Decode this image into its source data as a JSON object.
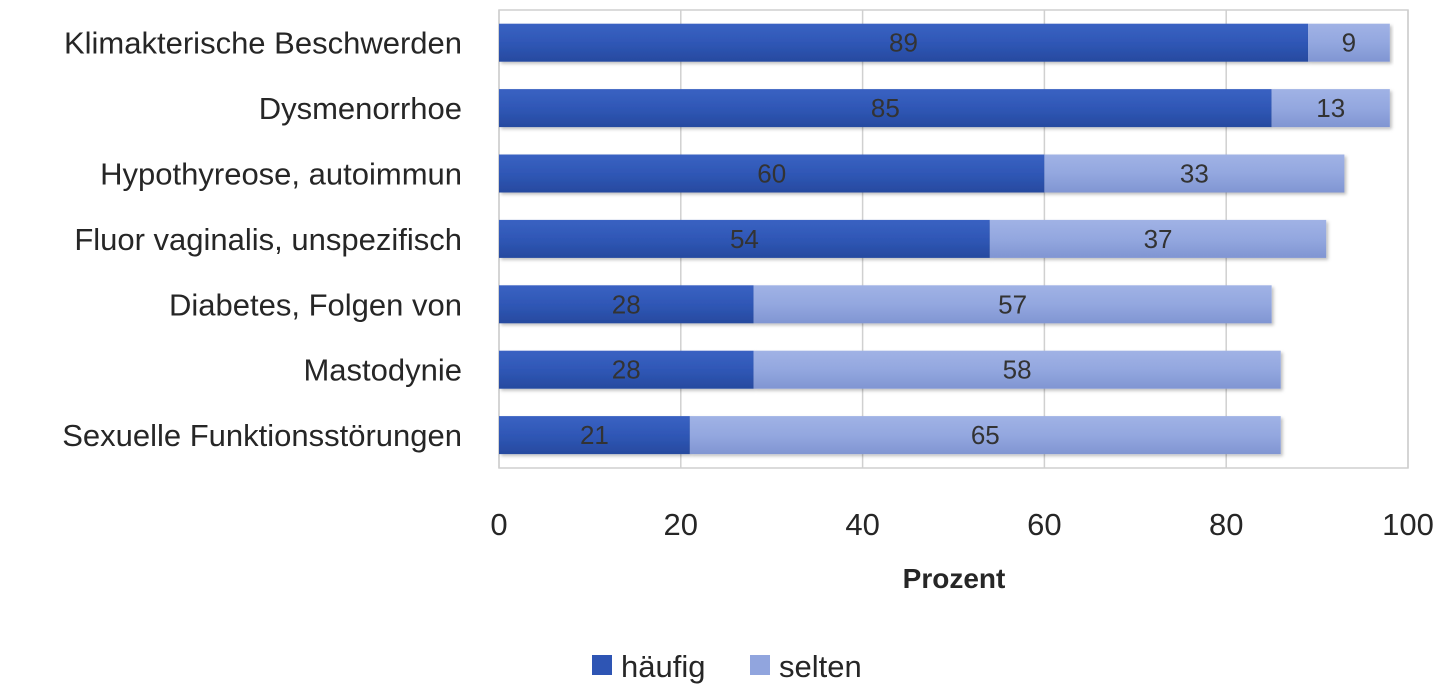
{
  "chart_data": {
    "type": "bar",
    "orientation": "horizontal",
    "stacked": true,
    "categories": [
      "Klimakterische Beschwerden",
      "Dysmenorrhoe",
      "Hypothyreose, autoimmun",
      "Fluor vaginalis, unspezifisch",
      "Diabetes, Folgen von",
      "Mastodynie",
      "Sexuelle Funktionsstörungen"
    ],
    "series": [
      {
        "name": "häufig",
        "color": "#2e55b4",
        "values": [
          89,
          85,
          60,
          54,
          28,
          28,
          21
        ]
      },
      {
        "name": "selten",
        "color": "#91a5de",
        "values": [
          9,
          13,
          33,
          37,
          57,
          58,
          65
        ]
      }
    ],
    "title": "",
    "xlabel": "Prozent",
    "ylabel": "",
    "xlim": [
      0,
      100
    ],
    "xticks": [
      "0",
      "20",
      "40",
      "60",
      "80",
      "100"
    ],
    "grid": true,
    "legend_position": "bottom"
  }
}
